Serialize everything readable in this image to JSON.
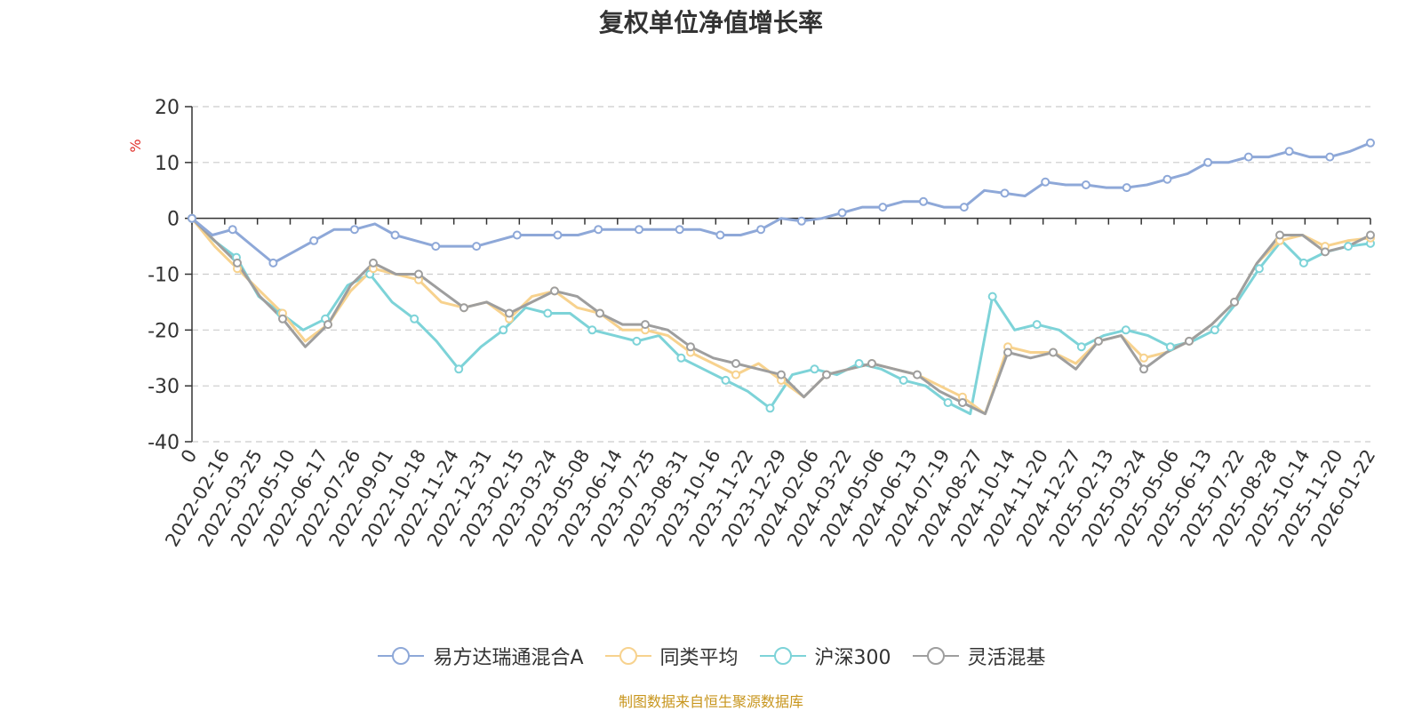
{
  "chart_data": {
    "type": "line",
    "title": "复权单位净值增长率",
    "ylabel": "%",
    "ylim": [
      -40,
      20
    ],
    "yticks": [
      20,
      10,
      0,
      -10,
      -20,
      -30,
      -40
    ],
    "grid": true,
    "legend_placement": "bottom",
    "x_tick_labels": [
      "0",
      "2022-02-16",
      "2022-03-25",
      "2022-05-10",
      "2022-06-17",
      "2022-07-26",
      "2022-09-01",
      "2022-10-18",
      "2022-11-24",
      "2022-12-31",
      "2023-02-15",
      "2023-03-24",
      "2023-05-08",
      "2023-06-14",
      "2023-07-25",
      "2023-08-31",
      "2023-10-16",
      "2023-11-22",
      "2023-12-29",
      "2024-02-06",
      "2024-03-22",
      "2024-05-06",
      "2024-06-13",
      "2024-07-19",
      "2024-08-27",
      "2024-10-14",
      "2024-11-20",
      "2024-12-27",
      "2025-02-13",
      "2025-03-24",
      "2025-05-06",
      "2025-06-13",
      "2025-07-22",
      "2025-08-28",
      "2025-10-14",
      "2025-11-20",
      "2026-01-22"
    ],
    "series": [
      {
        "name": "易方达瑞通混合A",
        "color": "#8ea8d8",
        "values": [
          0,
          -3,
          -2,
          -5,
          -8,
          -6,
          -4,
          -2,
          -2,
          -1,
          -3,
          -4,
          -5,
          -5,
          -5,
          -4,
          -3,
          -3,
          -3,
          -3,
          -2,
          -2,
          -2,
          -2,
          -2,
          -2,
          -3,
          -3,
          -2,
          0,
          -0.5,
          0,
          1,
          2,
          2,
          3,
          3,
          2,
          2,
          5,
          4.5,
          4,
          6.5,
          6,
          6,
          5.5,
          5.5,
          6,
          7,
          8,
          10,
          10,
          11,
          11,
          12,
          11,
          11,
          12,
          13.5
        ]
      },
      {
        "name": "同类平均",
        "color": "#f7d28e",
        "values": [
          0,
          -5,
          -9,
          -13,
          -17,
          -22,
          -19,
          -13,
          -9,
          -10,
          -11,
          -15,
          -16,
          -15,
          -18,
          -14,
          -13,
          -16,
          -17,
          -20,
          -20,
          -21,
          -24,
          -26,
          -28,
          -26,
          -29,
          -32,
          -28,
          -27,
          -26,
          -27,
          -28,
          -30,
          -32,
          -35,
          -23,
          -24,
          -24,
          -26,
          -22,
          -21,
          -25,
          -24,
          -22,
          -19,
          -15,
          -8,
          -4,
          -3,
          -5,
          -4,
          -3.5
        ]
      },
      {
        "name": "沪深300",
        "color": "#7dd3d8",
        "values": [
          0,
          -4,
          -7,
          -14,
          -17,
          -20,
          -18,
          -12,
          -10,
          -15,
          -18,
          -22,
          -27,
          -23,
          -20,
          -16,
          -17,
          -17,
          -20,
          -21,
          -22,
          -21,
          -25,
          -27,
          -29,
          -31,
          -34,
          -28,
          -27,
          -28,
          -26,
          -27,
          -29,
          -30,
          -33,
          -35,
          -14,
          -20,
          -19,
          -20,
          -23,
          -21,
          -20,
          -21,
          -23,
          -22,
          -20,
          -15,
          -9,
          -4,
          -8,
          -6,
          -5,
          -4.5
        ]
      },
      {
        "name": "灵活混基",
        "color": "#9e9e9e",
        "values": [
          0,
          -4,
          -8,
          -14,
          -18,
          -23,
          -19,
          -12,
          -8,
          -10,
          -10,
          -13,
          -16,
          -15,
          -17,
          -15,
          -13,
          -14,
          -17,
          -19,
          -19,
          -20,
          -23,
          -25,
          -26,
          -27,
          -28,
          -32,
          -28,
          -27,
          -26,
          -27,
          -28,
          -31,
          -33,
          -35,
          -24,
          -25,
          -24,
          -27,
          -22,
          -21,
          -27,
          -24,
          -22,
          -19,
          -15,
          -8,
          -3,
          -3,
          -6,
          -5,
          -3
        ]
      }
    ]
  },
  "footer": {
    "source_note": "制图数据来自恒生聚源数据库"
  }
}
